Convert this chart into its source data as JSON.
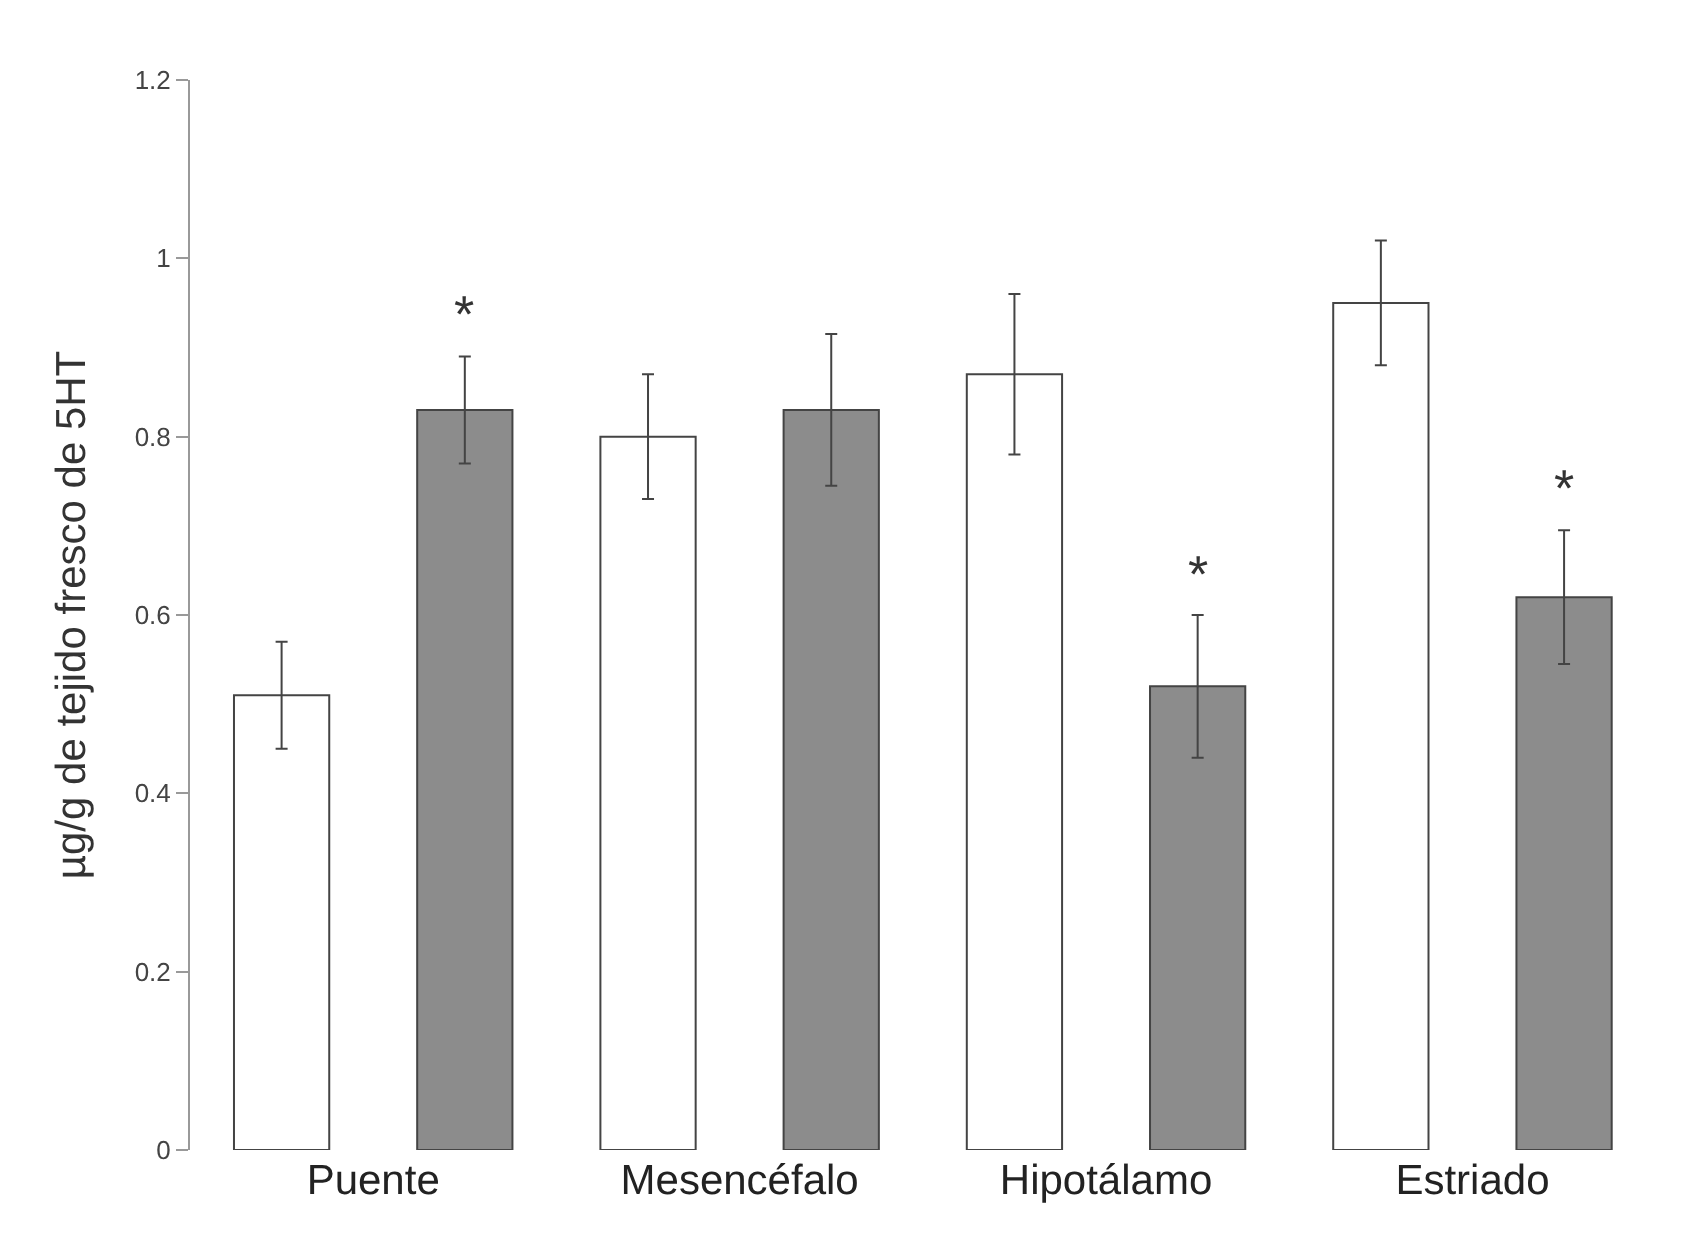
{
  "chart_data": {
    "type": "bar",
    "ylabel": "µg/g de tejido fresco de 5HT",
    "categories": [
      "Puente",
      "Mesencéfalo",
      "Hipotálamo",
      "Estriado"
    ],
    "series": [
      {
        "color": "#ffffff",
        "values": [
          0.51,
          0.8,
          0.87,
          0.95
        ],
        "errors": [
          0.06,
          0.07,
          0.09,
          0.07
        ]
      },
      {
        "color": "#8c8c8c",
        "values": [
          0.83,
          0.83,
          0.52,
          0.62
        ],
        "errors": [
          0.06,
          0.085,
          0.08,
          0.075
        ],
        "value_labels": [
          "*",
          null,
          "*",
          "*"
        ]
      }
    ],
    "ylim": [
      0,
      1.2
    ],
    "yticks": [
      0,
      0.2,
      0.4,
      0.6,
      0.8,
      1,
      1.2
    ],
    "grid": false
  }
}
